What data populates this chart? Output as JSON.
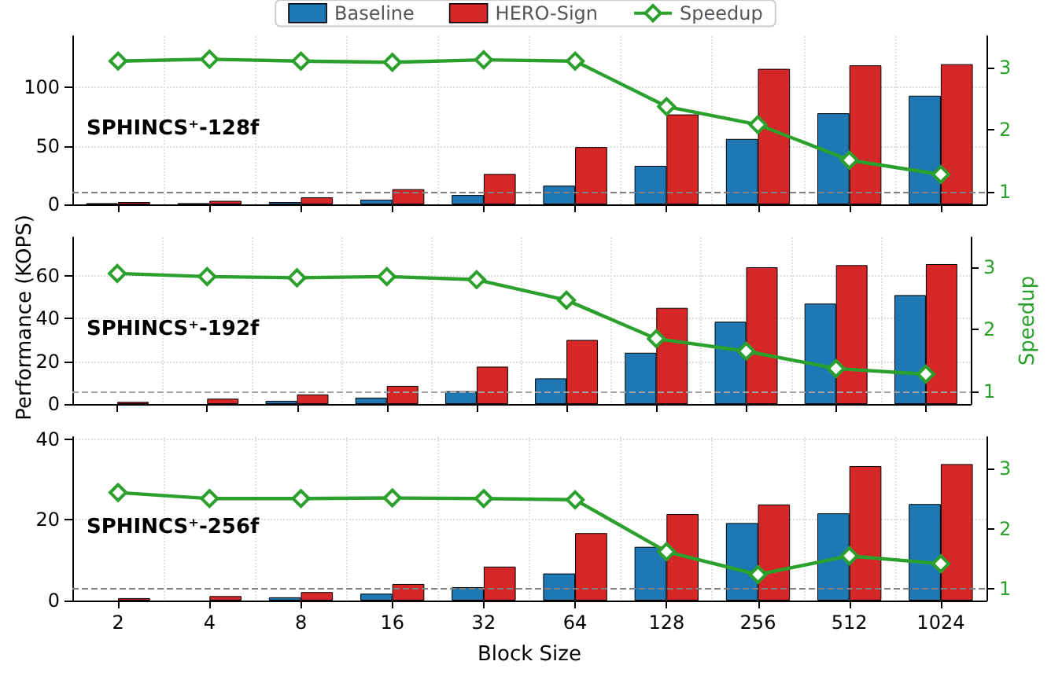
{
  "chart_data": [
    {
      "type": "bar",
      "title": "SPHINCS⁺-128f",
      "categories": [
        "2",
        "4",
        "8",
        "16",
        "32",
        "64",
        "128",
        "256",
        "512",
        "1024"
      ],
      "series": [
        {
          "name": "Baseline",
          "color": "#1f77b4",
          "values": [
            1,
            1,
            2,
            4,
            8,
            16,
            33,
            56,
            78,
            93
          ]
        },
        {
          "name": "HERO-Sign",
          "color": "#d62728",
          "values": [
            2,
            3,
            6,
            13,
            26,
            49,
            77,
            116,
            119,
            120
          ]
        },
        {
          "name": "Speedup",
          "type": "line",
          "axis": "y2",
          "color": "#2ca02c",
          "values": [
            3.1,
            3.13,
            3.1,
            3.08,
            3.12,
            3.1,
            2.37,
            2.08,
            1.51,
            1.28
          ]
        }
      ],
      "ylim": [
        0,
        144
      ],
      "yticks": [
        0,
        50,
        100
      ],
      "y2lim": [
        0.8,
        3.5
      ],
      "y2ticks": [
        1,
        2,
        3
      ],
      "ref_lines": [
        {
          "axis": "y2",
          "value": 1,
          "color": "#808080",
          "line_style": "dashed"
        }
      ],
      "grid": true,
      "legend": "top",
      "marker": "diamond",
      "tick_labels": "y"
    },
    {
      "type": "bar",
      "title": "SPHINCS⁺-192f",
      "ylabel": "Performance (KOPS)",
      "y2label": "Speedup",
      "categories": [
        "2",
        "4",
        "8",
        "16",
        "32",
        "64",
        "128",
        "256",
        "512",
        "1024"
      ],
      "series": [
        {
          "color": "#1f77b4",
          "values": [
            null,
            null,
            1.5,
            3,
            6,
            12,
            24,
            38.5,
            47,
            51
          ]
        },
        {
          "color": "#d62728",
          "values": [
            1,
            2.5,
            4.5,
            8.5,
            17.5,
            30,
            45,
            64,
            65,
            65.5
          ]
        },
        {
          "type": "line",
          "axis": "y2",
          "color": "#2ca02c",
          "values": [
            2.9,
            2.85,
            2.83,
            2.85,
            2.8,
            2.47,
            1.85,
            1.65,
            1.37,
            1.28
          ]
        }
      ],
      "ylim": [
        0,
        78
      ],
      "yticks": [
        0,
        20,
        40,
        60
      ],
      "y2lim": [
        0.8,
        3.48
      ],
      "y2ticks": [
        1,
        2,
        3
      ],
      "ref_lines": [
        {
          "axis": "y2",
          "value": 1,
          "color": "#a0a0a0",
          "line_style": "dashed"
        }
      ],
      "grid": true,
      "marker": "diamond",
      "tick_labels": "y"
    },
    {
      "type": "bar",
      "title": "SPHINCS⁺-256f",
      "xlabel": "Block Size",
      "categories": [
        "2",
        "4",
        "8",
        "16",
        "32",
        "64",
        "128",
        "256",
        "512",
        "1024"
      ],
      "series": [
        {
          "color": "#1f77b4",
          "values": [
            null,
            null,
            0.8,
            1.7,
            3.3,
            6.7,
            13.3,
            19.2,
            21.6,
            23.9
          ]
        },
        {
          "color": "#d62728",
          "values": [
            0.6,
            1.1,
            2.1,
            4.1,
            8.4,
            16.7,
            21.4,
            23.8,
            33.3,
            33.8
          ]
        },
        {
          "type": "line",
          "axis": "y2",
          "color": "#2ca02c",
          "values": [
            2.6,
            2.5,
            2.5,
            2.51,
            2.5,
            2.48,
            1.62,
            1.24,
            1.55,
            1.42
          ]
        }
      ],
      "ylim": [
        0,
        40.5
      ],
      "yticks": [
        0,
        20,
        40
      ],
      "y2lim": [
        0.81,
        3.52
      ],
      "y2ticks": [
        1,
        2,
        3
      ],
      "ref_lines": [
        {
          "axis": "y2",
          "value": 1,
          "color": "#808080",
          "line_style": "dashed"
        }
      ],
      "grid": true,
      "marker": "diamond"
    }
  ]
}
